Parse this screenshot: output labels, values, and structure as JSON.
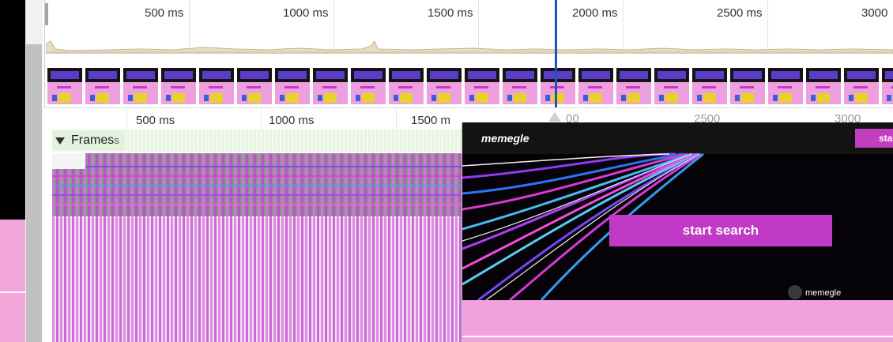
{
  "overview": {
    "ticks": [
      "500 ms",
      "1000 ms",
      "1500 ms",
      "2000 ms",
      "2500 ms",
      "3000"
    ]
  },
  "main": {
    "ticks": [
      "500 ms",
      "1000 ms",
      "1500 m"
    ],
    "hidden_ticks": [
      "00",
      "2500",
      "3000"
    ],
    "frames_label": "Frames",
    "frames_label_suffix": "s"
  },
  "preview": {
    "logo": "memegle",
    "top_button": "sta",
    "start_button": "start search",
    "brand": "memegle"
  },
  "colors": {
    "accent_blue": "#1a56b4",
    "magenta": "#c03ac5",
    "pink": "#f1a1dc"
  }
}
